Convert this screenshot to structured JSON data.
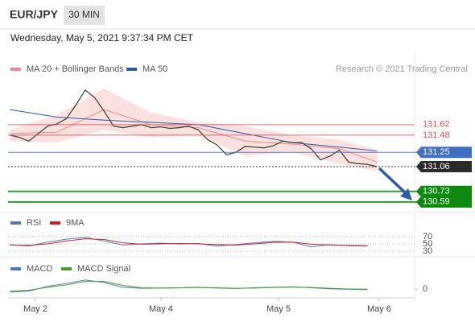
{
  "header": {
    "symbol": "EUR/JPY",
    "timeframe": "30 MIN",
    "datetime": "Wednesday, May 5, 2021 9:37:34 PM CET"
  },
  "chart_data": [
    {
      "type": "line",
      "source": "Research © 2021 Trading Central",
      "xlim": [
        -0.2,
        43.0
      ],
      "ylim": [
        130.47,
        132.53
      ],
      "x": [
        0,
        1,
        2,
        3,
        4,
        5,
        6,
        7,
        8,
        9,
        10,
        11,
        12,
        13,
        14,
        15,
        16,
        17,
        18,
        19,
        20,
        21,
        22,
        23,
        24,
        25,
        26,
        27,
        28,
        29,
        30,
        31,
        32,
        33,
        34,
        35,
        36,
        37,
        38,
        39
      ],
      "values": [
        131.48,
        131.45,
        131.4,
        131.5,
        131.6,
        131.63,
        131.7,
        131.88,
        132.08,
        131.98,
        131.8,
        131.6,
        131.58,
        131.6,
        131.62,
        131.58,
        131.59,
        131.57,
        131.58,
        131.6,
        131.55,
        131.42,
        131.35,
        131.22,
        131.25,
        131.33,
        131.32,
        131.31,
        131.34,
        131.4,
        131.38,
        131.38,
        131.3,
        131.15,
        131.2,
        131.28,
        131.12,
        131.1,
        131.09,
        131.06
      ],
      "color": "#3a4a3a",
      "series": [
        {
          "name": "MA 20 + Bollinger Bands",
          "color": "#f08a8a",
          "band_color": "#fde0e0",
          "x": [
            0,
            5,
            10,
            15,
            20,
            25,
            30,
            35,
            39
          ],
          "values": [
            131.5,
            131.52,
            131.82,
            131.62,
            131.58,
            131.4,
            131.36,
            131.3,
            131.12
          ],
          "upper": [
            131.55,
            131.75,
            132.1,
            131.78,
            131.65,
            131.6,
            131.48,
            131.42,
            131.28
          ],
          "lower": [
            131.4,
            131.38,
            131.55,
            131.45,
            131.48,
            131.2,
            131.25,
            131.1,
            131.0
          ]
        },
        {
          "name": "MA 50",
          "color": "#2a5caa",
          "x": [
            0,
            5,
            10,
            15,
            20,
            25,
            30,
            35,
            39
          ],
          "values": [
            131.82,
            131.72,
            131.68,
            131.65,
            131.62,
            131.5,
            131.38,
            131.32,
            131.27
          ]
        }
      ],
      "levels": [
        {
          "value": 131.62,
          "color": "#e05050",
          "style": "text",
          "width": 1
        },
        {
          "value": 131.48,
          "color": "#e05050",
          "style": "text",
          "width": 1
        },
        {
          "value": 131.25,
          "color": "#3f6fc0",
          "style": "box",
          "width": 1
        },
        {
          "value": 131.06,
          "color": "#2b2b2b",
          "style": "box",
          "width": 1,
          "dotted": true
        },
        {
          "value": 130.73,
          "color": "#0d8a0d",
          "style": "box",
          "width": 2
        },
        {
          "value": 130.59,
          "color": "#0d8a0d",
          "style": "box",
          "width": 2
        }
      ]
    },
    {
      "type": "line",
      "xlim": [
        -0.2,
        43.0
      ],
      "ylim": [
        20,
        92
      ],
      "yticks": [
        70,
        50,
        30
      ],
      "grid": true,
      "x": [
        0,
        2,
        4,
        6,
        8,
        10,
        12,
        14,
        16,
        18,
        20,
        22,
        24,
        26,
        28,
        30,
        32,
        34,
        36,
        38
      ],
      "series": [
        {
          "name": "RSI",
          "color": "#4a78c8",
          "values": [
            48,
            44,
            55,
            63,
            68,
            58,
            47,
            50,
            52,
            50,
            51,
            44,
            48,
            53,
            57,
            55,
            42,
            48,
            45,
            44
          ]
        },
        {
          "name": "9MA",
          "color": "#d02020",
          "values": [
            47,
            46,
            50,
            58,
            64,
            62,
            53,
            49,
            50,
            51,
            50,
            48,
            47,
            50,
            54,
            55,
            49,
            47,
            46,
            45
          ]
        }
      ]
    },
    {
      "type": "line",
      "xlim": [
        -0.2,
        43.0
      ],
      "ylim": [
        -0.13,
        0.16
      ],
      "yticks": [
        0
      ],
      "xticks": [
        {
          "value": 2.71,
          "label": "May 2"
        },
        {
          "value": 16.05,
          "label": "May 4"
        },
        {
          "value": 28.54,
          "label": "May 5"
        },
        {
          "value": 39.23,
          "label": "May 6"
        }
      ],
      "x": [
        0,
        2,
        4,
        6,
        8,
        10,
        12,
        14,
        16,
        18,
        20,
        22,
        24,
        26,
        28,
        30,
        32,
        34,
        36,
        38
      ],
      "series": [
        {
          "name": "MACD",
          "color": "#4a78c8",
          "values": [
            -0.03,
            -0.02,
            0.03,
            0.06,
            0.095,
            0.07,
            0.02,
            0.01,
            0.012,
            0.015,
            0.02,
            0.012,
            0.008,
            0.015,
            0.02,
            0.025,
            0.015,
            0.005,
            0.0,
            -0.005
          ]
        },
        {
          "name": "MACD Signal",
          "color": "#44a020",
          "values": [
            -0.02,
            -0.01,
            0.02,
            0.045,
            0.08,
            0.08,
            0.04,
            0.015,
            0.012,
            0.014,
            0.018,
            0.015,
            0.01,
            0.012,
            0.018,
            0.022,
            0.018,
            0.01,
            0.003,
            0.0
          ]
        }
      ]
    }
  ]
}
